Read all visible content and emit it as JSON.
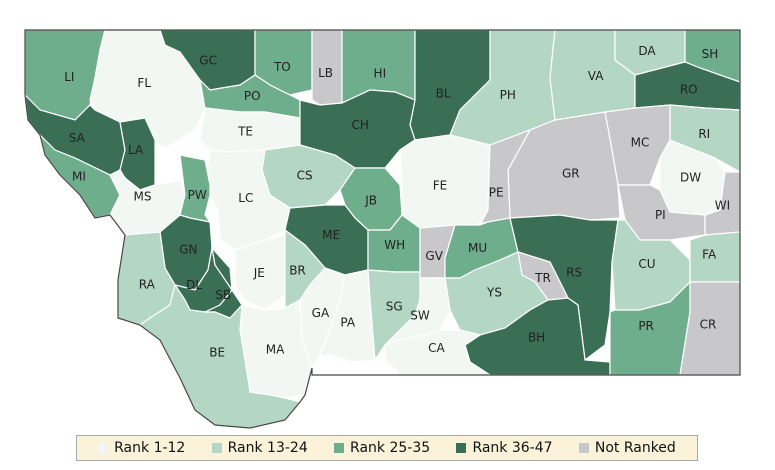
{
  "colors": {
    "rank_1_12": "#f2f7f4",
    "rank_13_24": "#b4d6c4",
    "rank_25_35": "#6fae8c",
    "rank_36_47": "#3b6f55",
    "not_ranked": "#c8c8cb",
    "border": "#444444"
  },
  "legend": [
    {
      "key": "rank_1_12",
      "label": "Rank 1-12"
    },
    {
      "key": "rank_13_24",
      "label": "Rank 13-24"
    },
    {
      "key": "rank_25_35",
      "label": "Rank 25-35"
    },
    {
      "key": "rank_36_47",
      "label": "Rank 36-47"
    },
    {
      "key": "not_ranked",
      "label": "Not Ranked"
    }
  ],
  "counties": [
    {
      "code": "LI",
      "cat": "rank_25_35"
    },
    {
      "code": "FL",
      "cat": "rank_1_12"
    },
    {
      "code": "GC",
      "cat": "rank_36_47"
    },
    {
      "code": "TO",
      "cat": "rank_25_35"
    },
    {
      "code": "LB",
      "cat": "not_ranked"
    },
    {
      "code": "HI",
      "cat": "rank_25_35"
    },
    {
      "code": "BL",
      "cat": "rank_36_47"
    },
    {
      "code": "PH",
      "cat": "rank_13_24"
    },
    {
      "code": "VA",
      "cat": "rank_13_24"
    },
    {
      "code": "DA",
      "cat": "rank_13_24"
    },
    {
      "code": "SH",
      "cat": "rank_25_35"
    },
    {
      "code": "RO",
      "cat": "rank_36_47"
    },
    {
      "code": "PO",
      "cat": "rank_25_35"
    },
    {
      "code": "SA",
      "cat": "rank_36_47"
    },
    {
      "code": "LA",
      "cat": "rank_36_47"
    },
    {
      "code": "TE",
      "cat": "rank_1_12"
    },
    {
      "code": "CH",
      "cat": "rank_36_47"
    },
    {
      "code": "RI",
      "cat": "rank_13_24"
    },
    {
      "code": "MC",
      "cat": "not_ranked"
    },
    {
      "code": "MI",
      "cat": "rank_25_35"
    },
    {
      "code": "CS",
      "cat": "rank_13_24"
    },
    {
      "code": "FE",
      "cat": "rank_1_12"
    },
    {
      "code": "GR",
      "cat": "not_ranked"
    },
    {
      "code": "DW",
      "cat": "rank_1_12"
    },
    {
      "code": "MS",
      "cat": "rank_1_12"
    },
    {
      "code": "LC",
      "cat": "rank_1_12"
    },
    {
      "code": "JB",
      "cat": "rank_25_35"
    },
    {
      "code": "PE",
      "cat": "not_ranked"
    },
    {
      "code": "PW",
      "cat": "rank_25_35"
    },
    {
      "code": "ME",
      "cat": "rank_36_47"
    },
    {
      "code": "PI",
      "cat": "not_ranked"
    },
    {
      "code": "WI",
      "cat": "not_ranked"
    },
    {
      "code": "WH",
      "cat": "rank_25_35"
    },
    {
      "code": "GV",
      "cat": "not_ranked"
    },
    {
      "code": "MU",
      "cat": "rank_25_35"
    },
    {
      "code": "GN",
      "cat": "rank_36_47"
    },
    {
      "code": "RS",
      "cat": "rank_36_47"
    },
    {
      "code": "CU",
      "cat": "rank_13_24"
    },
    {
      "code": "FA",
      "cat": "rank_13_24"
    },
    {
      "code": "RA",
      "cat": "rank_13_24"
    },
    {
      "code": "JE",
      "cat": "rank_1_12"
    },
    {
      "code": "BR",
      "cat": "rank_13_24"
    },
    {
      "code": "TR",
      "cat": "not_ranked"
    },
    {
      "code": "DL",
      "cat": "rank_36_47"
    },
    {
      "code": "SB",
      "cat": "rank_36_47"
    },
    {
      "code": "SG",
      "cat": "rank_13_24"
    },
    {
      "code": "YS",
      "cat": "rank_13_24"
    },
    {
      "code": "SW",
      "cat": "rank_1_12"
    },
    {
      "code": "GA",
      "cat": "rank_1_12"
    },
    {
      "code": "PA",
      "cat": "rank_1_12"
    },
    {
      "code": "BH",
      "cat": "rank_36_47"
    },
    {
      "code": "PR",
      "cat": "rank_25_35"
    },
    {
      "code": "CR",
      "cat": "not_ranked"
    },
    {
      "code": "MA",
      "cat": "rank_1_12"
    },
    {
      "code": "BE",
      "cat": "rank_13_24"
    },
    {
      "code": "CA",
      "cat": "rank_1_12"
    }
  ]
}
